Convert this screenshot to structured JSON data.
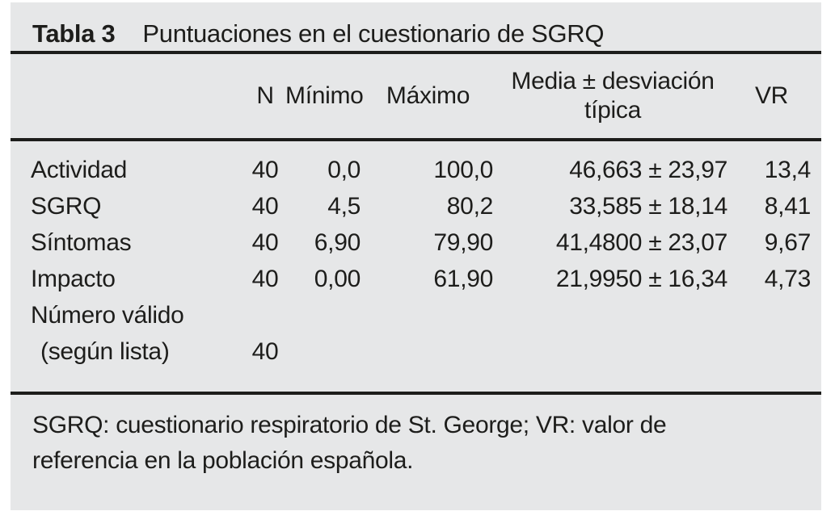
{
  "colors": {
    "panel_bg": "#e6e7e8",
    "rule": "#1d1d1b",
    "text": "#1d1d1b"
  },
  "table": {
    "caption_label": "Tabla 3",
    "caption_text": "Puntuaciones en el cuestionario de SGRQ",
    "columns": {
      "n": "N",
      "min": "Mínimo",
      "max": "Máximo",
      "media": "Media ± desviación típica",
      "vr": "VR"
    },
    "rows": [
      {
        "label": "Actividad",
        "n": "40",
        "min": "0,0",
        "max": "100,0",
        "media": "46,663 ± 23,97",
        "vr": "13,4"
      },
      {
        "label": "SGRQ",
        "n": "40",
        "min": "4,5",
        "max": "80,2",
        "media": "33,585 ± 18,14",
        "vr": "8,41"
      },
      {
        "label": "Síntomas",
        "n": "40",
        "min": "6,90",
        "max": "79,90",
        "media": "41,4800 ± 23,07",
        "vr": "9,67"
      },
      {
        "label": "Impacto",
        "n": "40",
        "min": "0,00",
        "max": "61,90",
        "media": "21,9950 ± 16,34",
        "vr": "4,73"
      }
    ],
    "last_row": {
      "label_line1": "Número válido",
      "label_line2": "(según lista)",
      "n": "40"
    },
    "footnote": "SGRQ: cuestionario respiratorio de St. George; VR: valor de referencia en la población española."
  }
}
